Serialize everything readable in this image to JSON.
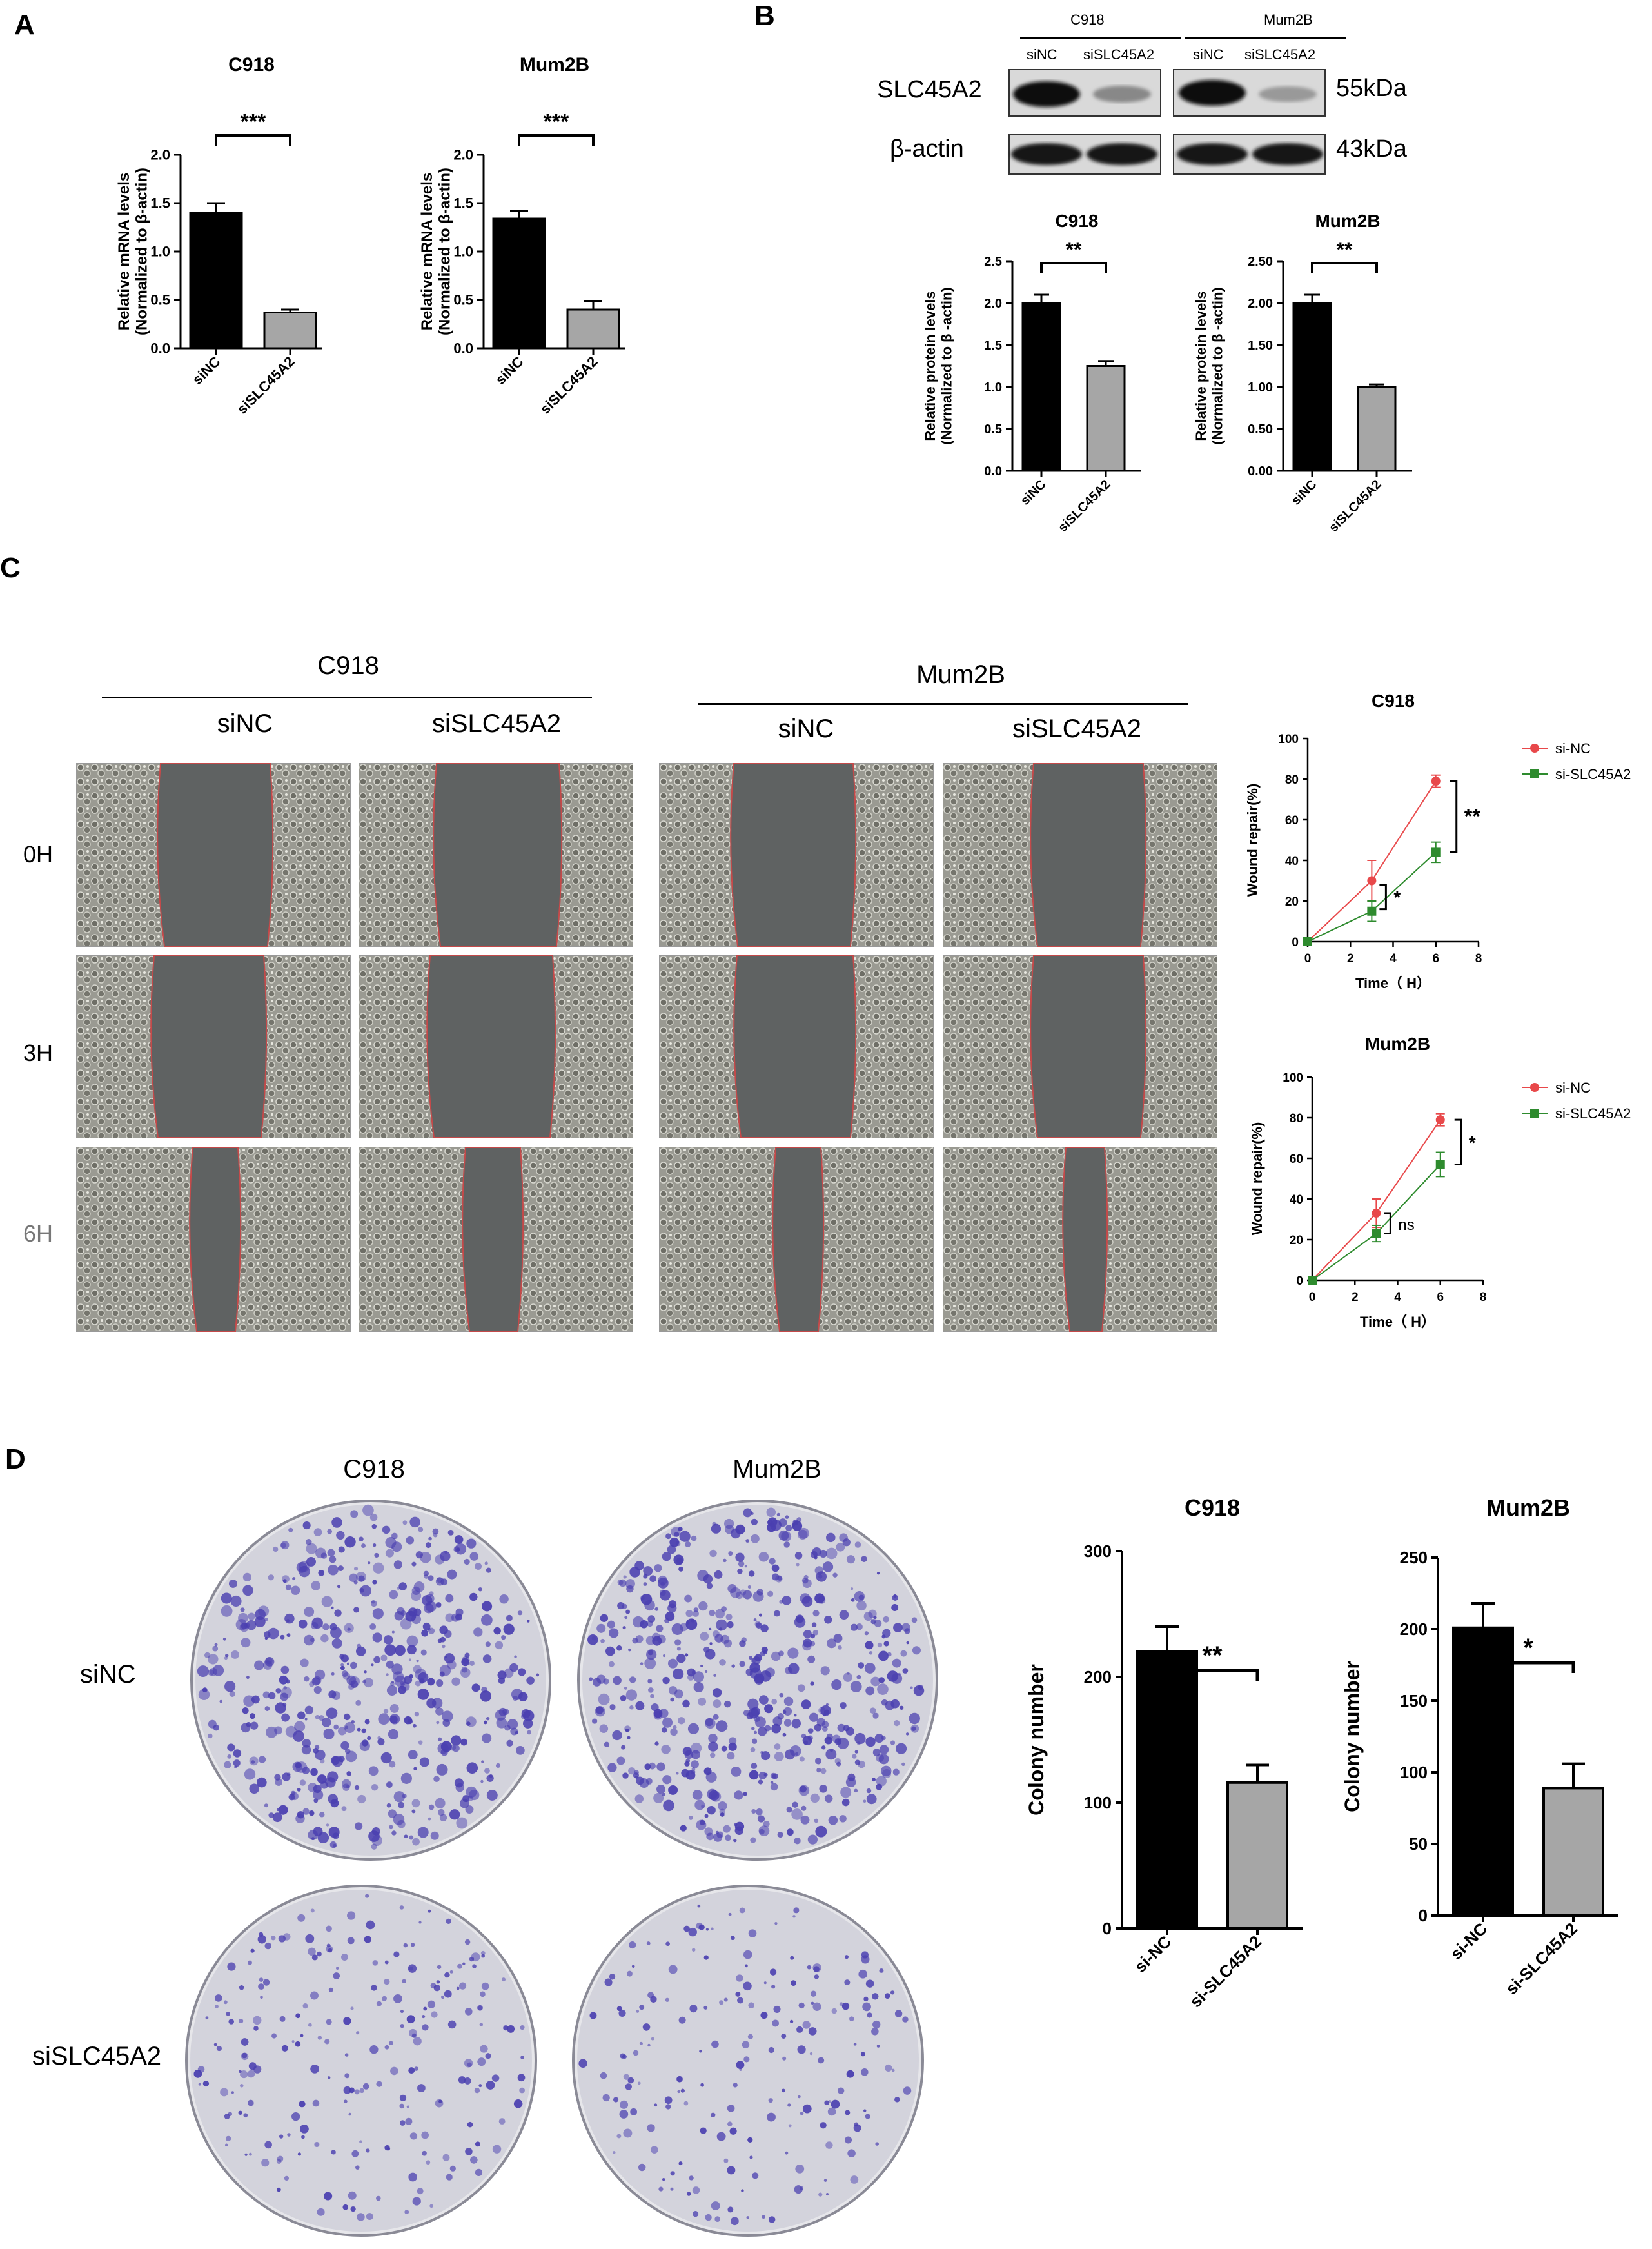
{
  "panels": {
    "A": "A",
    "B": "B",
    "C": "C",
    "D": "D"
  },
  "colors": {
    "black_bar": "#000000",
    "gray_bar": "#a6a6a6",
    "sinc_line": "#e8484a",
    "sislc_line": "#2e8b2e",
    "stain": "#4a3fb0"
  },
  "icons": {
    "wound_image": "phase-contrast-micrograph",
    "colony_plate": "stained-culture-plate",
    "blot_band": "western-blot-band"
  },
  "panelA": {
    "charts": [
      {
        "title": "C918",
        "ylabel_1": "Relative mRNA levels",
        "ylabel_2": "(Normalized to β-actin)",
        "sig": "***"
      },
      {
        "title": "Mum2B",
        "ylabel_1": "Relative mRNA levels",
        "ylabel_2": "(Normalized to β-actin)",
        "sig": "***"
      }
    ]
  },
  "panelB": {
    "blot": {
      "cell_lines": [
        "C918",
        "Mum2B"
      ],
      "lanes": [
        "siNC",
        "siSLC45A2",
        "siNC",
        "siSLC45A2"
      ],
      "proteins": [
        "SLC45A2",
        "β-actin"
      ],
      "sizes": [
        "55kDa",
        "43kDa"
      ]
    },
    "charts": [
      {
        "title": "C918",
        "ylabel_1": "Relative protein levels",
        "ylabel_2": "(Normalized to β -actin)",
        "sig": "**"
      },
      {
        "title": "Mum2B",
        "ylabel_1": "Relative protein levels",
        "ylabel_2": "(Normalized to β -actin)",
        "sig": "**"
      }
    ]
  },
  "panelC": {
    "cell_lines": [
      "C918",
      "Mum2B"
    ],
    "conditions": [
      "siNC",
      "siSLC45A2",
      "siNC",
      "siSLC45A2"
    ],
    "timepoints": [
      "0H",
      "3H",
      "6H"
    ],
    "charts": [
      {
        "title": "C918",
        "xlabel": "Time（ H）",
        "ylabel": "Wound repair(%)",
        "legend": [
          "si-NC",
          "si-SLC45A2"
        ],
        "sig_3h": "*",
        "sig_6h": "**"
      },
      {
        "title": "Mum2B",
        "xlabel": "Time（ H）",
        "ylabel": "Wound repair(%)",
        "legend": [
          "si-NC",
          "si-SLC45A2"
        ],
        "sig_3h": "ns",
        "sig_6h": "*"
      }
    ]
  },
  "panelD": {
    "cell_lines": [
      "C918",
      "Mum2B"
    ],
    "conditions": [
      "siNC",
      "siSLC45A2"
    ],
    "charts": [
      {
        "title": "C918",
        "ylabel": "Colony number",
        "sig": "**"
      },
      {
        "title": "Mum2B",
        "ylabel": "Colony number",
        "sig": "*"
      }
    ]
  },
  "chart_data": [
    {
      "id": "A1",
      "type": "bar",
      "title": "C918",
      "ylabel": "Relative mRNA levels (Normalized to β-actin)",
      "categories": [
        "siNC",
        "siSLC45A2"
      ],
      "values": [
        1.4,
        0.37
      ],
      "errors": [
        0.1,
        0.03
      ],
      "ylim": [
        0,
        2.0
      ],
      "yticks": [
        0.0,
        0.5,
        1.0,
        1.5,
        2.0
      ],
      "ytick_labels": [
        "0.0",
        "0.5",
        "1.0",
        "1.5",
        "2.0"
      ],
      "annotations": [
        "***"
      ]
    },
    {
      "id": "A2",
      "type": "bar",
      "title": "Mum2B",
      "ylabel": "Relative mRNA levels (Normalized to β-actin)",
      "categories": [
        "siNC",
        "siSLC45A2"
      ],
      "values": [
        1.34,
        0.4
      ],
      "errors": [
        0.08,
        0.09
      ],
      "ylim": [
        0,
        2.0
      ],
      "yticks": [
        0.0,
        0.5,
        1.0,
        1.5,
        2.0
      ],
      "ytick_labels": [
        "0.0",
        "0.5",
        "1.0",
        "1.5",
        "2.0"
      ],
      "annotations": [
        "***"
      ]
    },
    {
      "id": "B1",
      "type": "bar",
      "title": "C918",
      "ylabel": "Relative protein levels (Normalized to β -actin)",
      "categories": [
        "siNC",
        "siSLC45A2"
      ],
      "values": [
        2.0,
        1.25
      ],
      "errors": [
        0.1,
        0.06
      ],
      "ylim": [
        0,
        2.5
      ],
      "yticks": [
        0.0,
        0.5,
        1.0,
        1.5,
        2.0,
        2.5
      ],
      "ytick_labels": [
        "0.0",
        "0.5",
        "1.0",
        "1.5",
        "2.0",
        "2.5"
      ],
      "annotations": [
        "**"
      ]
    },
    {
      "id": "B2",
      "type": "bar",
      "title": "Mum2B",
      "ylabel": "Relative protein levels (Normalized to β -actin)",
      "categories": [
        "siNC",
        "siSLC45A2"
      ],
      "values": [
        2.0,
        1.0
      ],
      "errors": [
        0.1,
        0.03
      ],
      "ylim": [
        0,
        2.5
      ],
      "yticks": [
        0.0,
        0.5,
        1.0,
        1.5,
        2.0,
        2.5
      ],
      "ytick_labels": [
        "0.00",
        "0.50",
        "1.00",
        "1.50",
        "2.00",
        "2.50"
      ],
      "annotations": [
        "**"
      ]
    },
    {
      "id": "C1",
      "type": "line",
      "title": "C918",
      "xlabel": "Time（ H）",
      "ylabel": "Wound repair(%)",
      "x": [
        0,
        3,
        6
      ],
      "xlim": [
        0,
        8
      ],
      "xticks": [
        0,
        2,
        4,
        6,
        8
      ],
      "ylim": [
        0,
        100
      ],
      "yticks": [
        0,
        20,
        40,
        60,
        80,
        100
      ],
      "series": [
        {
          "name": "si-NC",
          "values": [
            0,
            30,
            79
          ],
          "errors": [
            0,
            10,
            3
          ]
        },
        {
          "name": "si-SLC45A2",
          "values": [
            0,
            15,
            44
          ],
          "errors": [
            0,
            5,
            5
          ]
        }
      ],
      "annotations": [
        "*",
        "**"
      ]
    },
    {
      "id": "C2",
      "type": "line",
      "title": "Mum2B",
      "xlabel": "Time（ H）",
      "ylabel": "Wound repair(%)",
      "x": [
        0,
        3,
        6
      ],
      "xlim": [
        0,
        8
      ],
      "xticks": [
        0,
        2,
        4,
        6,
        8
      ],
      "ylim": [
        0,
        100
      ],
      "yticks": [
        0,
        20,
        40,
        60,
        80,
        100
      ],
      "series": [
        {
          "name": "si-NC",
          "values": [
            0,
            33,
            79
          ],
          "errors": [
            0,
            7,
            3
          ]
        },
        {
          "name": "si-SLC45A2",
          "values": [
            0,
            23,
            57
          ],
          "errors": [
            0,
            4,
            6
          ]
        }
      ],
      "annotations": [
        "ns",
        "*"
      ]
    },
    {
      "id": "D1",
      "type": "bar",
      "title": "C918",
      "ylabel": "Colony number",
      "categories": [
        "si-NC",
        "si-SLC45A2"
      ],
      "values": [
        220,
        116
      ],
      "errors": [
        20,
        14
      ],
      "ylim": [
        0,
        300
      ],
      "yticks": [
        0,
        100,
        200,
        300
      ],
      "ytick_labels": [
        "0",
        "100",
        "200",
        "300"
      ],
      "annotations": [
        "**"
      ]
    },
    {
      "id": "D2",
      "type": "bar",
      "title": "Mum2B",
      "ylabel": "Colony number",
      "categories": [
        "si-NC",
        "si-SLC45A2"
      ],
      "values": [
        201,
        89
      ],
      "errors": [
        17,
        17
      ],
      "ylim": [
        0,
        250
      ],
      "yticks": [
        0,
        50,
        100,
        150,
        200,
        250
      ],
      "ytick_labels": [
        "0",
        "50",
        "100",
        "150",
        "200",
        "250"
      ],
      "annotations": [
        "*"
      ]
    }
  ]
}
